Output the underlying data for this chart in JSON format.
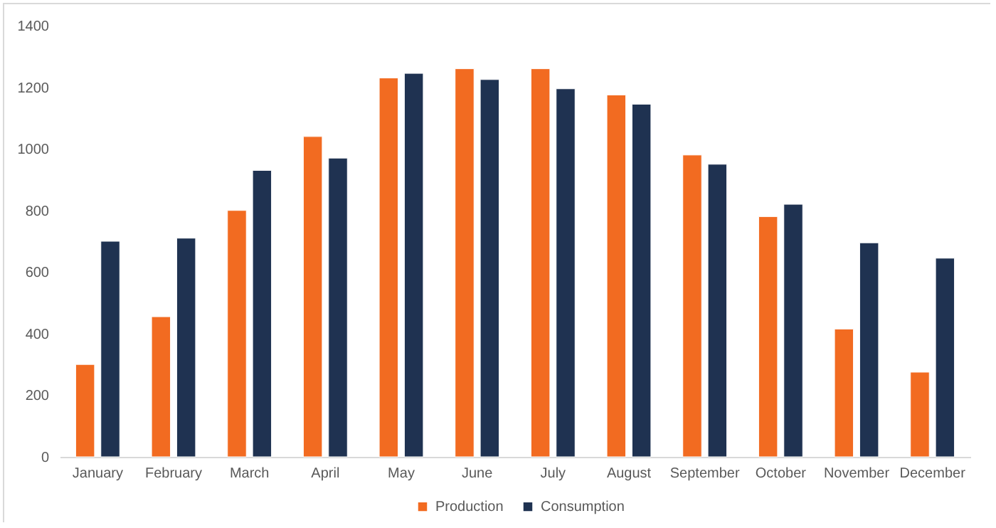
{
  "chart_data": {
    "type": "bar",
    "categories": [
      "January",
      "February",
      "March",
      "April",
      "May",
      "June",
      "July",
      "August",
      "September",
      "October",
      "November",
      "December"
    ],
    "series": [
      {
        "name": "Production",
        "color": "#f26b21",
        "values": [
          300,
          455,
          800,
          1040,
          1230,
          1260,
          1260,
          1175,
          980,
          780,
          415,
          275
        ]
      },
      {
        "name": "Consumption",
        "color": "#1f3251",
        "values": [
          700,
          710,
          930,
          970,
          1245,
          1225,
          1195,
          1145,
          950,
          820,
          695,
          645
        ]
      }
    ],
    "ylim": [
      0,
      1400
    ],
    "yticks": [
      0,
      200,
      400,
      600,
      800,
      1000,
      1200,
      1400
    ],
    "grid": false,
    "legend": "bottom"
  }
}
